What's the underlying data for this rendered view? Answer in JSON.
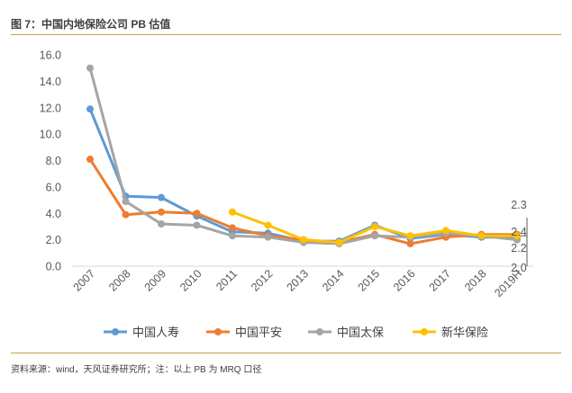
{
  "header": {
    "title": "图 7：中国内地保险公司 PB 估值"
  },
  "footer": {
    "source": "资料来源：wind，天风证券研究所；注：以上 PB 为 MRQ 口径"
  },
  "chart_data": {
    "type": "line",
    "title": "图 7：中国内地保险公司 PB 估值",
    "categories": [
      "2007",
      "2008",
      "2009",
      "2010",
      "2011",
      "2012",
      "2013",
      "2014",
      "2015",
      "2016",
      "2017",
      "2018",
      "2019H"
    ],
    "ylim": [
      0,
      16
    ],
    "yticks": [
      "0.0",
      "2.0",
      "4.0",
      "6.0",
      "8.0",
      "10.0",
      "12.0",
      "14.0",
      "16.0"
    ],
    "xlabel": "",
    "ylabel": "",
    "grid": false,
    "legend_position": "bottom",
    "series": [
      {
        "name": "中国人寿",
        "color": "#5b9bd5",
        "values": [
          11.9,
          5.3,
          5.2,
          3.8,
          2.6,
          2.5,
          1.9,
          1.9,
          3.1,
          2.1,
          2.4,
          2.2,
          2.2
        ]
      },
      {
        "name": "中国平安",
        "color": "#ed7d31",
        "values": [
          8.1,
          3.9,
          4.1,
          4.0,
          2.9,
          2.3,
          2.0,
          1.8,
          2.4,
          1.7,
          2.2,
          2.4,
          2.4
        ]
      },
      {
        "name": "中国太保",
        "color": "#a5a5a5",
        "values": [
          15.0,
          4.9,
          3.2,
          3.1,
          2.3,
          2.2,
          1.8,
          1.7,
          2.3,
          2.2,
          2.5,
          2.3,
          2.0
        ]
      },
      {
        "name": "新华保险",
        "color": "#ffc000",
        "values": [
          null,
          null,
          null,
          null,
          4.1,
          3.1,
          2.0,
          1.8,
          3.0,
          2.3,
          2.7,
          2.3,
          2.3
        ]
      }
    ],
    "annotations": [
      "2.3",
      "2.4",
      "2.2",
      "2.0"
    ]
  }
}
